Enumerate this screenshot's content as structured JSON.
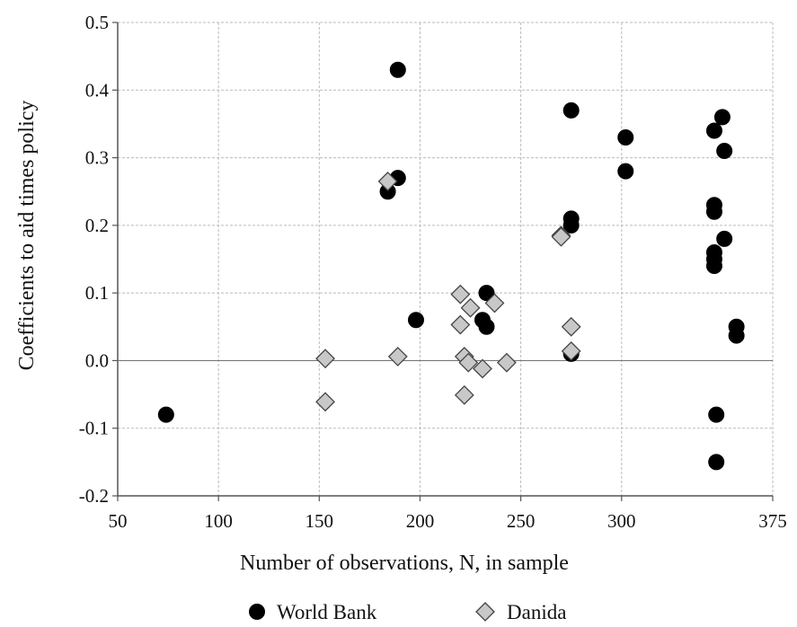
{
  "chart_data": {
    "type": "scatter",
    "title": "",
    "xlabel": "Number of observations, N, in sample",
    "ylabel": "Coefficients to aid times policy",
    "xlim": [
      50,
      375
    ],
    "ylim": [
      -0.2,
      0.5
    ],
    "x_ticks": [
      50,
      100,
      150,
      200,
      250,
      300,
      375
    ],
    "x_tick_labels": [
      "50",
      "100",
      "150",
      "200",
      "250",
      "300",
      "375"
    ],
    "y_ticks": [
      -0.2,
      -0.1,
      0.0,
      0.1,
      0.2,
      0.3,
      0.4,
      0.5
    ],
    "y_tick_labels": [
      "-0.2",
      "-0.1",
      "0.0",
      "0.1",
      "0.2",
      "0.3",
      "0.4",
      "0.5"
    ],
    "grid": true,
    "zero_line": true,
    "legend_position": "bottom",
    "series": [
      {
        "name": "World Bank",
        "marker": "circle",
        "color": "#000000",
        "points": [
          {
            "x": 74,
            "y": -0.08
          },
          {
            "x": 184,
            "y": 0.25
          },
          {
            "x": 189,
            "y": 0.43
          },
          {
            "x": 189,
            "y": 0.27
          },
          {
            "x": 198,
            "y": 0.06
          },
          {
            "x": 231,
            "y": 0.06
          },
          {
            "x": 233,
            "y": 0.1
          },
          {
            "x": 233,
            "y": 0.05
          },
          {
            "x": 275,
            "y": 0.37
          },
          {
            "x": 275,
            "y": 0.21
          },
          {
            "x": 275,
            "y": 0.2
          },
          {
            "x": 275,
            "y": 0.01
          },
          {
            "x": 302,
            "y": 0.33
          },
          {
            "x": 302,
            "y": 0.28
          },
          {
            "x": 346,
            "y": 0.34
          },
          {
            "x": 346,
            "y": 0.23
          },
          {
            "x": 346,
            "y": 0.22
          },
          {
            "x": 346,
            "y": 0.16
          },
          {
            "x": 346,
            "y": 0.15
          },
          {
            "x": 346,
            "y": 0.14
          },
          {
            "x": 347,
            "y": -0.08
          },
          {
            "x": 347,
            "y": -0.15
          },
          {
            "x": 350,
            "y": 0.36
          },
          {
            "x": 351,
            "y": 0.31
          },
          {
            "x": 351,
            "y": 0.18
          },
          {
            "x": 357,
            "y": 0.05
          },
          {
            "x": 357,
            "y": 0.037
          }
        ]
      },
      {
        "name": "Danida",
        "marker": "diamond",
        "color": "#c8c8c8",
        "points": [
          {
            "x": 153,
            "y": 0.003
          },
          {
            "x": 153,
            "y": -0.061
          },
          {
            "x": 184,
            "y": 0.265
          },
          {
            "x": 189,
            "y": 0.006
          },
          {
            "x": 220,
            "y": 0.098
          },
          {
            "x": 220,
            "y": 0.053
          },
          {
            "x": 222,
            "y": 0.006
          },
          {
            "x": 222,
            "y": -0.051
          },
          {
            "x": 224,
            "y": -0.003
          },
          {
            "x": 225,
            "y": 0.078
          },
          {
            "x": 231,
            "y": -0.012
          },
          {
            "x": 237,
            "y": 0.085
          },
          {
            "x": 243,
            "y": -0.003
          },
          {
            "x": 270,
            "y": 0.185
          },
          {
            "x": 270,
            "y": 0.183
          },
          {
            "x": 275,
            "y": 0.05
          },
          {
            "x": 275,
            "y": 0.014
          }
        ]
      }
    ]
  }
}
